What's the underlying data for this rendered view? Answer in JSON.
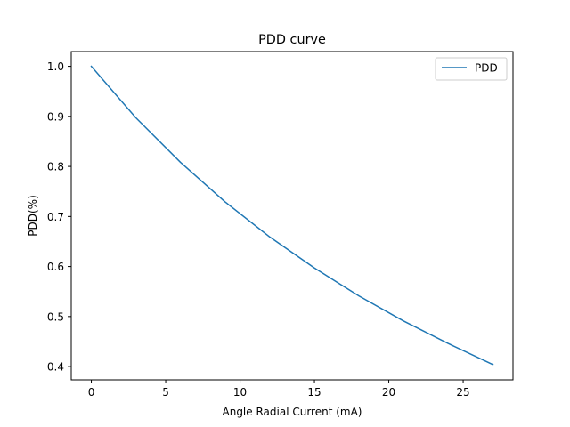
{
  "chart_data": {
    "type": "line",
    "title": "PDD curve",
    "xlabel": "Angle Radial Current (mA)",
    "ylabel": "PDD(%)",
    "xlim": [
      -1.35,
      28.35
    ],
    "ylim": [
      0.3735,
      1.0295
    ],
    "xticks": [
      0,
      5,
      10,
      15,
      20,
      25
    ],
    "yticks": [
      0.4,
      0.5,
      0.6,
      0.7,
      0.8,
      0.9,
      1.0
    ],
    "xtick_labels": [
      "0",
      "5",
      "10",
      "15",
      "20",
      "25"
    ],
    "ytick_labels": [
      "0.4",
      "0.5",
      "0.6",
      "0.7",
      "0.8",
      "0.9",
      "1.0"
    ],
    "legend_position": "top-right",
    "grid": false,
    "series": [
      {
        "name": "PDD",
        "color": "#1f77b4",
        "x": [
          0,
          3,
          6,
          9,
          12,
          15,
          18,
          21,
          24,
          27
        ],
        "y": [
          1.0,
          0.897,
          0.808,
          0.729,
          0.659,
          0.597,
          0.541,
          0.491,
          0.446,
          0.404
        ]
      }
    ]
  }
}
